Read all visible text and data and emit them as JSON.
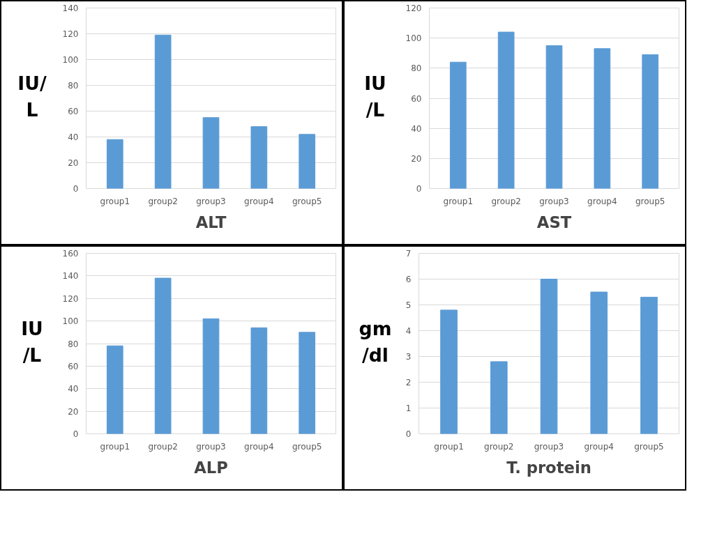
{
  "chart_data": [
    {
      "type": "bar",
      "title": "ALT",
      "ylabel": "IU/\nL",
      "categories": [
        "group1",
        "group2",
        "group3",
        "group4",
        "group5"
      ],
      "values": [
        38,
        119,
        55,
        48,
        42
      ],
      "color": "#5b9bd5",
      "ylim": [
        0,
        140
      ],
      "yticks": [
        0,
        20,
        40,
        60,
        80,
        100,
        120,
        140
      ],
      "grid": "y"
    },
    {
      "type": "bar",
      "title": "AST",
      "ylabel": "IU\n/L",
      "categories": [
        "group1",
        "group2",
        "group3",
        "group4",
        "group5"
      ],
      "values": [
        84,
        104,
        95,
        93,
        89
      ],
      "color": "#5b9bd5",
      "ylim": [
        0,
        120
      ],
      "yticks": [
        0,
        20,
        40,
        60,
        80,
        100,
        120
      ],
      "grid": "y"
    },
    {
      "type": "bar",
      "title": "ALP",
      "ylabel": "IU\n/L",
      "categories": [
        "group1",
        "group2",
        "group3",
        "group4",
        "group5"
      ],
      "values": [
        78,
        138,
        102,
        94,
        90
      ],
      "color": "#5b9bd5",
      "ylim": [
        0,
        160
      ],
      "yticks": [
        0,
        20,
        40,
        60,
        80,
        100,
        120,
        140,
        160
      ],
      "grid": "y"
    },
    {
      "type": "bar",
      "title": "T. protein",
      "ylabel": "gm\n/dl",
      "categories": [
        "group1",
        "group2",
        "group3",
        "group4",
        "group5"
      ],
      "values": [
        4.8,
        2.8,
        6.0,
        5.5,
        5.3
      ],
      "color": "#5b9bd5",
      "ylim": [
        0,
        7
      ],
      "yticks": [
        0,
        1,
        2,
        3,
        4,
        5,
        6,
        7
      ],
      "grid": "y"
    }
  ]
}
